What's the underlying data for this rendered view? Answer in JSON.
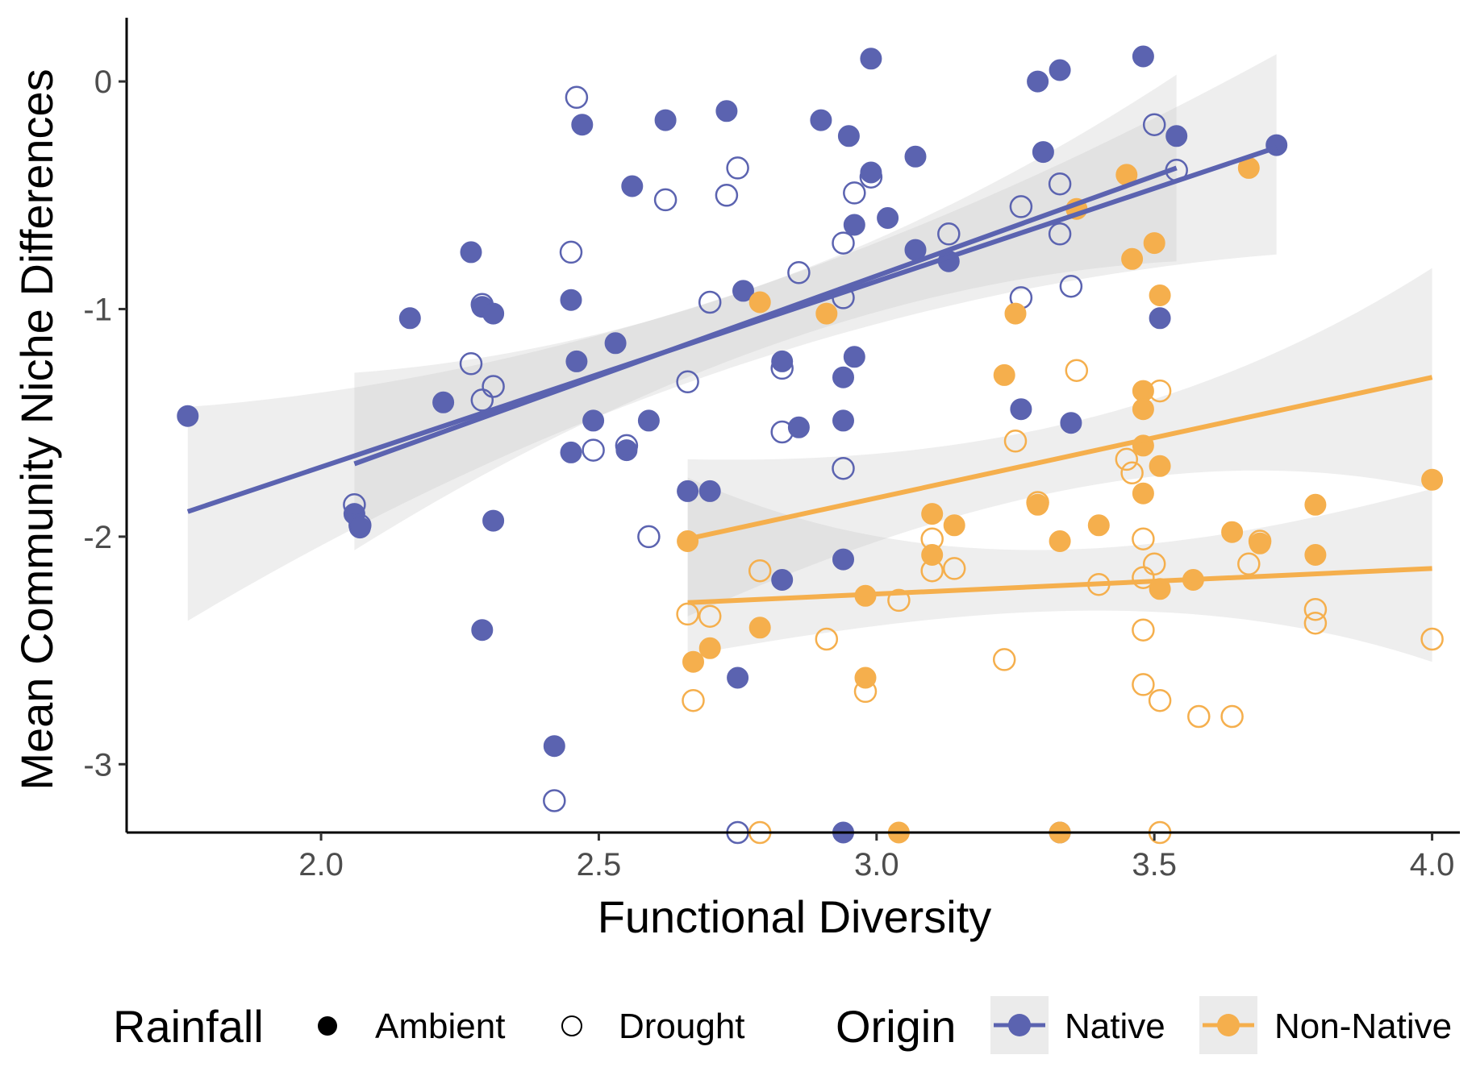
{
  "chart_data": {
    "type": "scatter",
    "title": "",
    "xlabel": "Functional Diversity",
    "ylabel": "Mean Community Niche Differences",
    "xlim": [
      1.65,
      4.05
    ],
    "ylim": [
      -3.3,
      0.28
    ],
    "xticks": [
      2.0,
      2.5,
      3.0,
      3.5,
      4.0
    ],
    "xtick_labels": [
      "2.0",
      "2.5",
      "3.0",
      "3.5",
      "4.0"
    ],
    "yticks": [
      0,
      -1,
      -2,
      -3
    ],
    "ytick_labels": [
      "0",
      "-1",
      "-2",
      "-3"
    ],
    "grid": false,
    "legend_position": "bottom",
    "colors": {
      "native": "#5b63b0",
      "nonnative": "#f5af4d",
      "band": "#c8c8c8"
    },
    "legends": {
      "rainfall": {
        "title": "Rainfall",
        "items": [
          {
            "label": "Ambient",
            "shape": "filled-circle"
          },
          {
            "label": "Drought",
            "shape": "open-circle"
          }
        ]
      },
      "origin": {
        "title": "Origin",
        "items": [
          {
            "label": "Native",
            "color": "#5b63b0"
          },
          {
            "label": "Non-Native",
            "color": "#f5af4d"
          }
        ]
      }
    },
    "series": [
      {
        "origin": "Native",
        "rainfall": "Ambient",
        "points": [
          [
            1.76,
            -1.47
          ],
          [
            2.06,
            -1.9
          ],
          [
            2.07,
            -1.96
          ],
          [
            2.16,
            -1.04
          ],
          [
            2.22,
            -1.41
          ],
          [
            2.27,
            -0.75
          ],
          [
            2.29,
            -0.99
          ],
          [
            2.29,
            -2.41
          ],
          [
            2.31,
            -1.02
          ],
          [
            2.31,
            -1.93
          ],
          [
            2.42,
            -2.92
          ],
          [
            2.45,
            -0.96
          ],
          [
            2.45,
            -1.63
          ],
          [
            2.46,
            -1.23
          ],
          [
            2.47,
            -0.19
          ],
          [
            2.49,
            -1.49
          ],
          [
            2.53,
            -1.15
          ],
          [
            2.55,
            -1.62
          ],
          [
            2.56,
            -0.46
          ],
          [
            2.59,
            -1.49
          ],
          [
            2.62,
            -0.17
          ],
          [
            2.66,
            -1.8
          ],
          [
            2.7,
            -1.8
          ],
          [
            2.73,
            -0.13
          ],
          [
            2.75,
            -2.62
          ],
          [
            2.76,
            -0.92
          ],
          [
            2.83,
            -1.23
          ],
          [
            2.83,
            -2.19
          ],
          [
            2.86,
            -1.52
          ],
          [
            2.9,
            -0.17
          ],
          [
            2.94,
            -1.3
          ],
          [
            2.94,
            -1.49
          ],
          [
            2.94,
            -2.1
          ],
          [
            2.95,
            -0.24
          ],
          [
            2.96,
            -0.63
          ],
          [
            2.96,
            -1.21
          ],
          [
            2.99,
            0.1
          ],
          [
            2.99,
            -0.4
          ],
          [
            3.02,
            -0.6
          ],
          [
            3.07,
            -0.33
          ],
          [
            3.07,
            -0.74
          ],
          [
            3.13,
            -0.79
          ],
          [
            3.26,
            -1.44
          ],
          [
            3.29,
            0.0
          ],
          [
            3.3,
            -0.31
          ],
          [
            3.33,
            0.05
          ],
          [
            3.35,
            -1.5
          ],
          [
            3.48,
            0.11
          ],
          [
            3.51,
            -1.04
          ],
          [
            3.54,
            -0.24
          ],
          [
            3.72,
            -0.28
          ],
          [
            2.94,
            -3.3
          ],
          [
            3.33,
            -3.3
          ]
        ]
      },
      {
        "origin": "Native",
        "rainfall": "Drought",
        "points": [
          [
            2.06,
            -1.86
          ],
          [
            2.07,
            -1.95
          ],
          [
            2.27,
            -1.24
          ],
          [
            2.29,
            -0.98
          ],
          [
            2.29,
            -1.4
          ],
          [
            2.31,
            -1.34
          ],
          [
            2.42,
            -3.16
          ],
          [
            2.45,
            -0.75
          ],
          [
            2.46,
            -0.07
          ],
          [
            2.49,
            -1.62
          ],
          [
            2.55,
            -1.6
          ],
          [
            2.59,
            -2.0
          ],
          [
            2.62,
            -0.52
          ],
          [
            2.66,
            -1.32
          ],
          [
            2.7,
            -0.97
          ],
          [
            2.73,
            -0.5
          ],
          [
            2.75,
            -0.38
          ],
          [
            2.83,
            -1.26
          ],
          [
            2.83,
            -1.54
          ],
          [
            2.86,
            -0.84
          ],
          [
            2.94,
            -0.71
          ],
          [
            2.94,
            -0.95
          ],
          [
            2.94,
            -1.7
          ],
          [
            2.96,
            -0.49
          ],
          [
            2.99,
            -0.42
          ],
          [
            3.13,
            -0.67
          ],
          [
            3.26,
            -0.95
          ],
          [
            3.26,
            -0.55
          ],
          [
            3.33,
            -0.45
          ],
          [
            3.33,
            -0.67
          ],
          [
            3.35,
            -0.9
          ],
          [
            3.5,
            -0.19
          ],
          [
            3.54,
            -0.39
          ],
          [
            2.75,
            -3.3
          ]
        ]
      },
      {
        "origin": "Non-Native",
        "rainfall": "Ambient",
        "points": [
          [
            2.66,
            -2.02
          ],
          [
            2.67,
            -2.55
          ],
          [
            2.7,
            -2.49
          ],
          [
            2.79,
            -2.4
          ],
          [
            2.79,
            -0.97
          ],
          [
            2.91,
            -1.02
          ],
          [
            2.98,
            -2.26
          ],
          [
            2.98,
            -2.62
          ],
          [
            3.1,
            -1.9
          ],
          [
            3.1,
            -2.08
          ],
          [
            3.14,
            -1.95
          ],
          [
            3.23,
            -1.29
          ],
          [
            3.25,
            -1.02
          ],
          [
            3.29,
            -1.86
          ],
          [
            3.33,
            -2.02
          ],
          [
            3.36,
            -0.56
          ],
          [
            3.4,
            -1.95
          ],
          [
            3.45,
            -0.41
          ],
          [
            3.46,
            -0.78
          ],
          [
            3.48,
            -1.36
          ],
          [
            3.48,
            -1.44
          ],
          [
            3.48,
            -1.6
          ],
          [
            3.48,
            -1.81
          ],
          [
            3.5,
            -0.71
          ],
          [
            3.51,
            -0.94
          ],
          [
            3.51,
            -1.69
          ],
          [
            3.51,
            -2.23
          ],
          [
            3.57,
            -2.19
          ],
          [
            3.64,
            -1.98
          ],
          [
            3.67,
            -0.38
          ],
          [
            3.69,
            -2.03
          ],
          [
            3.79,
            -1.86
          ],
          [
            3.79,
            -2.08
          ],
          [
            4.0,
            -1.75
          ],
          [
            3.04,
            -3.3
          ],
          [
            3.33,
            -3.3
          ]
        ]
      },
      {
        "origin": "Non-Native",
        "rainfall": "Drought",
        "points": [
          [
            2.66,
            -2.34
          ],
          [
            2.67,
            -2.72
          ],
          [
            2.7,
            -2.35
          ],
          [
            2.79,
            -2.15
          ],
          [
            2.79,
            -3.3
          ],
          [
            2.91,
            -2.45
          ],
          [
            2.98,
            -2.68
          ],
          [
            3.04,
            -2.28
          ],
          [
            3.1,
            -2.15
          ],
          [
            3.1,
            -2.01
          ],
          [
            3.14,
            -2.14
          ],
          [
            3.23,
            -2.54
          ],
          [
            3.25,
            -1.58
          ],
          [
            3.29,
            -1.85
          ],
          [
            3.36,
            -1.27
          ],
          [
            3.4,
            -2.21
          ],
          [
            3.45,
            -1.66
          ],
          [
            3.46,
            -1.72
          ],
          [
            3.48,
            -2.01
          ],
          [
            3.48,
            -2.18
          ],
          [
            3.48,
            -2.41
          ],
          [
            3.48,
            -2.65
          ],
          [
            3.5,
            -2.12
          ],
          [
            3.51,
            -1.36
          ],
          [
            3.51,
            -2.72
          ],
          [
            3.58,
            -2.79
          ],
          [
            3.64,
            -2.79
          ],
          [
            3.67,
            -2.12
          ],
          [
            3.69,
            -2.02
          ],
          [
            3.79,
            -2.32
          ],
          [
            3.79,
            -2.38
          ],
          [
            4.0,
            -2.45
          ],
          [
            3.51,
            -3.3
          ]
        ]
      }
    ],
    "fits": [
      {
        "origin": "Native",
        "rainfall": "Ambient",
        "x": [
          1.76,
          3.72
        ],
        "y": [
          -1.89,
          -0.29
        ],
        "ci_low": [
          -2.37,
          -0.76
        ],
        "ci_high": [
          -1.43,
          0.12
        ]
      },
      {
        "origin": "Native",
        "rainfall": "Drought",
        "x": [
          2.06,
          3.54
        ],
        "y": [
          -1.68,
          -0.38
        ],
        "ci_low": [
          -2.06,
          -0.79
        ],
        "ci_high": [
          -1.28,
          0.03
        ]
      },
      {
        "origin": "Non-Native",
        "rainfall": "Ambient",
        "x": [
          2.66,
          4.0
        ],
        "y": [
          -2.29,
          -2.14
        ],
        "ci_low": [
          -2.52,
          -2.55
        ],
        "ci_high": [
          -1.74,
          -1.79
        ]
      },
      {
        "origin": "Non-Native",
        "rainfall": "Drought",
        "x": [
          2.66,
          4.0
        ],
        "y": [
          -2.01,
          -1.3
        ],
        "ci_low": [
          -2.35,
          -1.79
        ],
        "ci_high": [
          -1.66,
          -0.82
        ]
      }
    ]
  }
}
